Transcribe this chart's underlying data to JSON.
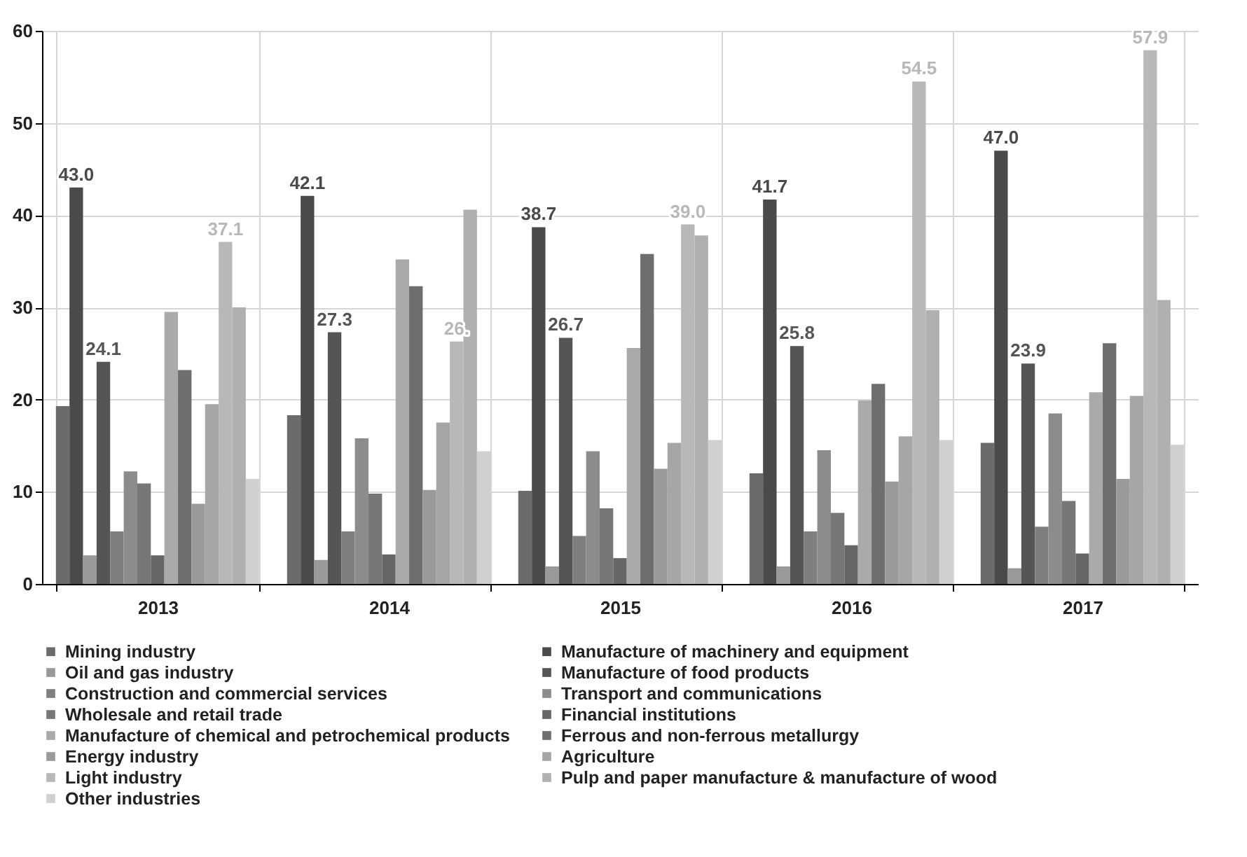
{
  "chart_data": {
    "type": "bar",
    "categories": [
      "2013",
      "2014",
      "2015",
      "2016",
      "2017"
    ],
    "series": [
      {
        "name": "Mining industry",
        "color": "#6b6b6b",
        "values": [
          19.3,
          18.3,
          10.1,
          12.0,
          15.3
        ]
      },
      {
        "name": "Manufacture of machinery and equipment",
        "color": "#4a4a4a",
        "values": [
          43.0,
          42.1,
          38.7,
          41.7,
          47.0
        ],
        "value_labels": [
          "43.0",
          "42.1",
          "38.7",
          "41.7",
          "47.0"
        ]
      },
      {
        "name": "Oil and gas industry",
        "color": "#999999",
        "values": [
          3.1,
          2.6,
          1.9,
          1.9,
          1.7
        ]
      },
      {
        "name": "Manufacture of food products",
        "color": "#555555",
        "values": [
          24.1,
          27.3,
          26.7,
          25.8,
          23.9
        ],
        "value_labels": [
          "24.1",
          "27.3",
          "26.7",
          "25.8",
          "23.9"
        ]
      },
      {
        "name": "Construction and commercial services",
        "color": "#7f7f7f",
        "values": [
          5.7,
          5.7,
          5.2,
          5.7,
          6.2
        ]
      },
      {
        "name": "Transport and communications",
        "color": "#8c8c8c",
        "values": [
          12.2,
          15.8,
          14.4,
          14.5,
          18.5
        ]
      },
      {
        "name": "Wholesale and retail trade",
        "color": "#777777",
        "values": [
          10.9,
          9.8,
          8.2,
          7.7,
          9.0
        ]
      },
      {
        "name": "Financial institutions",
        "color": "#666666",
        "values": [
          3.1,
          3.2,
          2.8,
          4.2,
          3.3
        ]
      },
      {
        "name": "Manufacture of chemical and petrochemical products",
        "color": "#aaaaaa",
        "values": [
          29.5,
          35.2,
          25.6,
          19.9,
          20.8
        ]
      },
      {
        "name": "Ferrous and non-ferrous metallurgy",
        "color": "#6e6e6e",
        "values": [
          23.2,
          32.3,
          35.8,
          21.7,
          26.1
        ]
      },
      {
        "name": "Energy industry",
        "color": "#9a9a9a",
        "values": [
          8.7,
          10.2,
          12.5,
          11.1,
          11.4
        ]
      },
      {
        "name": "Agriculture",
        "color": "#a6a6a6",
        "values": [
          19.5,
          17.5,
          15.3,
          16.0,
          20.4
        ]
      },
      {
        "name": "Light industry",
        "color": "#b8b8b8",
        "values": [
          37.1,
          26.3,
          39.0,
          54.5,
          57.9
        ],
        "value_labels": [
          "37.1",
          "26.",
          "39.0",
          "54.5",
          "57.9"
        ]
      },
      {
        "name": "Pulp and paper manufacture & manufacture of wood",
        "color": "#b0b0b0",
        "values": [
          30.0,
          40.6,
          37.8,
          29.7,
          30.8
        ]
      },
      {
        "name": "Other industries",
        "color": "#d0d0d0",
        "values": [
          11.4,
          14.4,
          15.6,
          15.6,
          15.1
        ]
      }
    ],
    "ylim": [
      0,
      60
    ],
    "yticks": [
      0,
      10,
      20,
      30,
      40,
      50,
      60
    ],
    "grid": true,
    "legend": "bottom"
  }
}
